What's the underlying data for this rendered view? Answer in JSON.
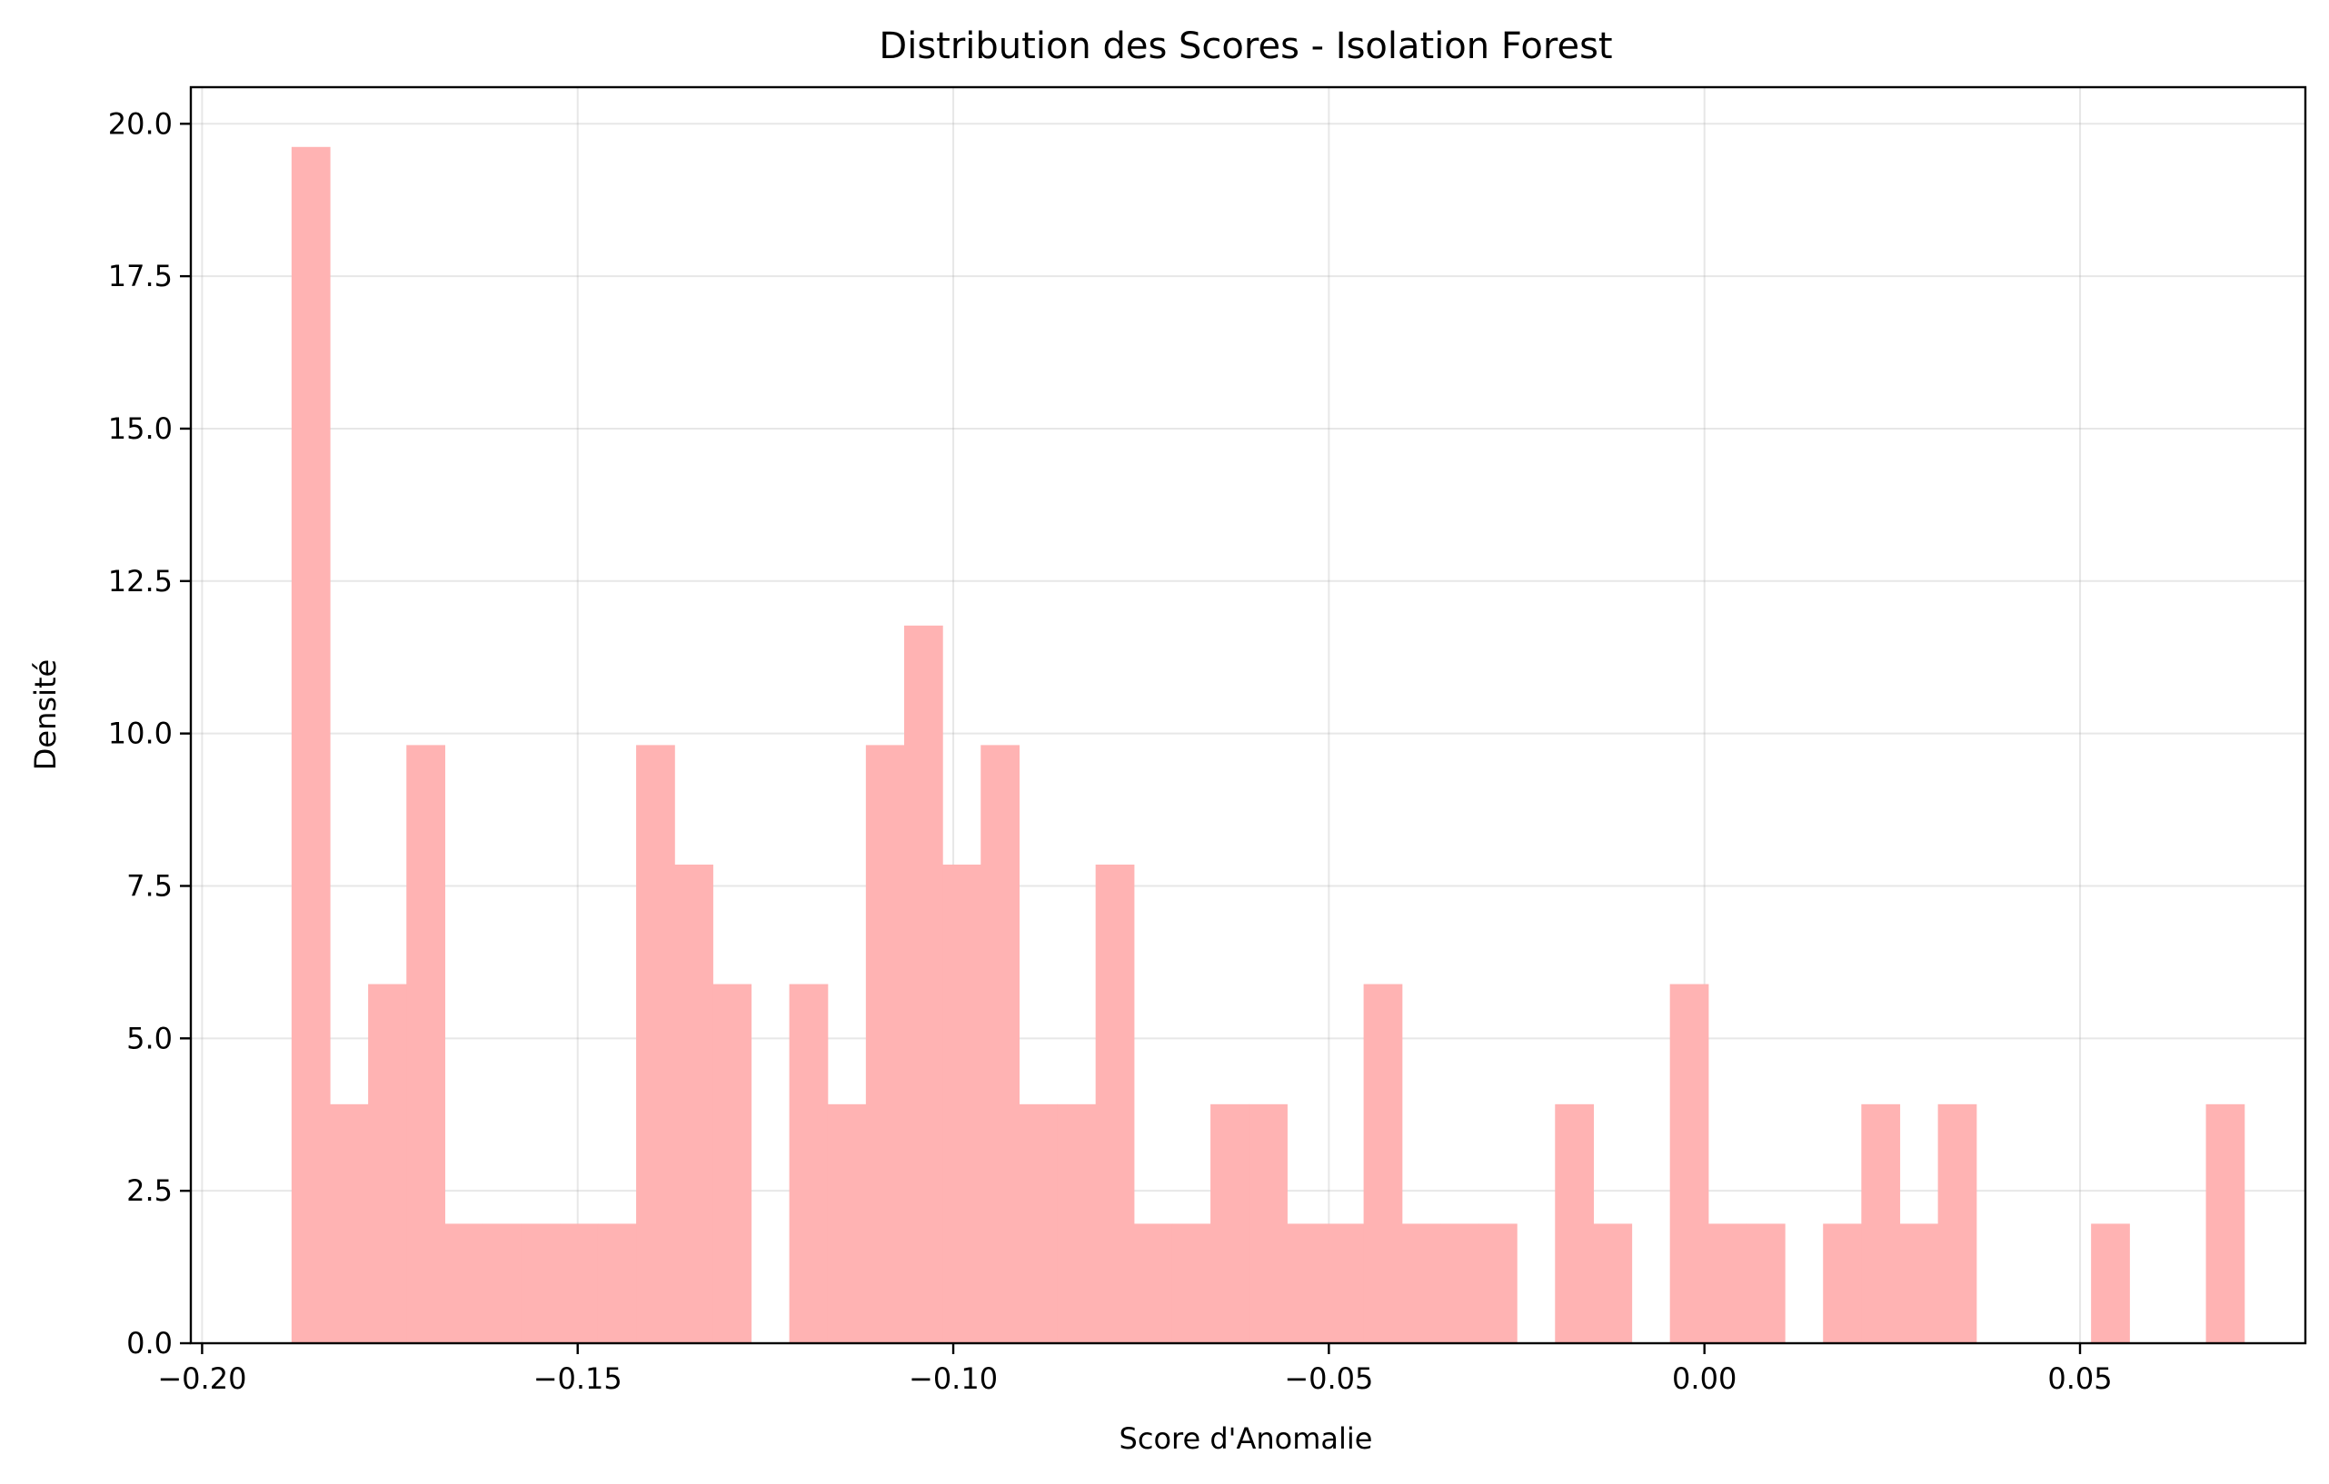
{
  "chart_data": {
    "type": "bar",
    "title": "Distribution des Scores - Isolation Forest",
    "xlabel": "Score d'Anomalie",
    "ylabel": "Densité",
    "xlim": [
      -0.2015,
      0.08
    ],
    "ylim": [
      0,
      20.6
    ],
    "grid": true,
    "bar_color": "#ffb3b3",
    "bins": {
      "start": -0.18809,
      "width": 0.005097,
      "values": [
        19.62,
        3.92,
        5.89,
        9.81,
        1.96,
        1.96,
        1.96,
        1.96,
        1.96,
        9.81,
        7.85,
        5.89,
        0,
        5.89,
        3.92,
        9.81,
        11.77,
        7.85,
        9.81,
        3.92,
        3.92,
        7.85,
        1.96,
        1.96,
        3.92,
        3.92,
        1.96,
        1.96,
        5.89,
        1.96,
        1.96,
        1.96,
        0,
        3.92,
        1.96,
        0,
        5.89,
        1.96,
        1.96,
        0,
        1.96,
        3.92,
        1.96,
        3.92,
        0,
        0,
        0,
        1.96,
        0,
        0,
        3.92
      ]
    },
    "xticks": [
      {
        "value": -0.2,
        "label": "−0.20"
      },
      {
        "value": -0.15,
        "label": "−0.15"
      },
      {
        "value": -0.1,
        "label": "−0.10"
      },
      {
        "value": -0.05,
        "label": "−0.05"
      },
      {
        "value": 0.0,
        "label": "0.00"
      },
      {
        "value": 0.05,
        "label": "0.05"
      }
    ],
    "yticks": [
      {
        "value": 0,
        "label": "0.0"
      },
      {
        "value": 2.5,
        "label": "2.5"
      },
      {
        "value": 5,
        "label": "5.0"
      },
      {
        "value": 7.5,
        "label": "7.5"
      },
      {
        "value": 10,
        "label": "10.0"
      },
      {
        "value": 12.5,
        "label": "12.5"
      },
      {
        "value": 15,
        "label": "15.0"
      },
      {
        "value": 17.5,
        "label": "17.5"
      },
      {
        "value": 20,
        "label": "20.0"
      }
    ]
  }
}
